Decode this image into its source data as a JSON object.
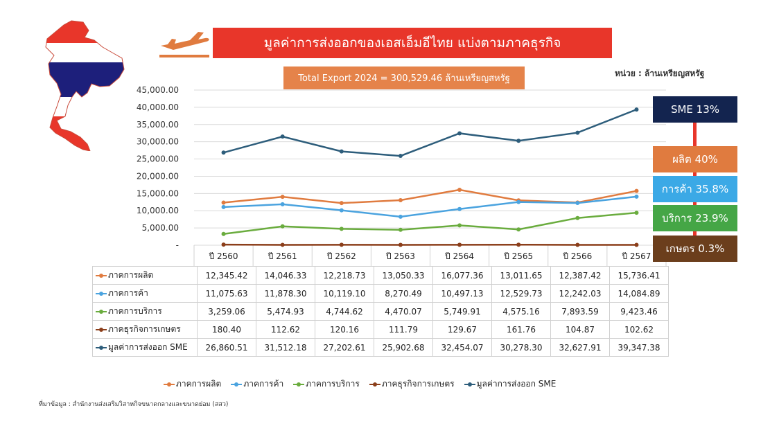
{
  "title": "มูลค่าการส่งออกของเอสเอ็มอีไทย แบ่งตามภาคธุรกิจ",
  "total_export": "Total Export 2024 = 300,529.46 ล้านเหรียญสหรัฐ",
  "unit": "หน่วย : ล้านเหรียญสหรัฐ",
  "source": "ที่มาข้อมูล : สำนักงานส่งเสริมวิสาหกิจขนาดกลางและขนาดย่อม (สสว)",
  "badges": {
    "sme": "SME 13%",
    "manufacturing": "ผลิต 40%",
    "trade": "การค้า 35.8%",
    "services": "บริการ 23.9%",
    "agriculture": "เกษตร 0.3%"
  },
  "colors": {
    "banner": "#e8362a",
    "total_box": "#e5834a",
    "grid": "#d9d9d9"
  },
  "icons": [
    "thailand-map-icon",
    "airplane-takeoff-icon"
  ],
  "chart_data": {
    "type": "line",
    "categories": [
      "ปี 2560",
      "ปี 2561",
      "ปี 2562",
      "ปี 2563",
      "ปี 2564",
      "ปี 2565",
      "ปี 2566",
      "ปี 2567"
    ],
    "yticks": [
      "45,000.00",
      "40,000.00",
      "35,000.00",
      "30,000.00",
      "25,000.00",
      "20,000.00",
      "15,000.00",
      "10,000.00",
      "5,000.00",
      "-"
    ],
    "ylim": [
      0,
      45000
    ],
    "grid": true,
    "legend_position": "bottom",
    "series": [
      {
        "name": "ภาคการผลิต",
        "color": "#e07b3f",
        "values": [
          12345.42,
          14046.33,
          12218.73,
          13050.33,
          16077.36,
          13011.65,
          12387.42,
          15736.41
        ],
        "labels": [
          "12,345.42",
          "14,046.33",
          "12,218.73",
          "13,050.33",
          "16,077.36",
          "13,011.65",
          "12,387.42",
          "15,736.41"
        ]
      },
      {
        "name": "ภาคการค้า",
        "color": "#4aa3df",
        "values": [
          11075.63,
          11878.3,
          10119.1,
          8270.49,
          10497.13,
          12529.73,
          12242.03,
          14084.89
        ],
        "labels": [
          "11,075.63",
          "11,878.30",
          "10,119.10",
          "8,270.49",
          "10,497.13",
          "12,529.73",
          "12,242.03",
          "14,084.89"
        ]
      },
      {
        "name": "ภาคการบริการ",
        "color": "#6aac3e",
        "values": [
          3259.06,
          5474.93,
          4744.62,
          4470.07,
          5749.91,
          4575.16,
          7893.59,
          9423.46
        ],
        "labels": [
          "3,259.06",
          "5,474.93",
          "4,744.62",
          "4,470.07",
          "5,749.91",
          "4,575.16",
          "7,893.59",
          "9,423.46"
        ]
      },
      {
        "name": "ภาคธุรกิจการเกษตร",
        "color": "#8b3e1a",
        "values": [
          180.4,
          112.62,
          120.16,
          111.79,
          129.67,
          161.76,
          104.87,
          102.62
        ],
        "labels": [
          "180.40",
          "112.62",
          "120.16",
          "111.79",
          "129.67",
          "161.76",
          "104.87",
          "102.62"
        ]
      },
      {
        "name": "มูลค่าการส่งออก SME",
        "color": "#2d5d7b",
        "values": [
          26860.51,
          31512.18,
          27202.61,
          25902.68,
          32454.07,
          30278.3,
          32627.91,
          39347.38
        ],
        "labels": [
          "26,860.51",
          "31,512.18",
          "27,202.61",
          "25,902.68",
          "32,454.07",
          "30,278.30",
          "32,627.91",
          "39,347.38"
        ]
      }
    ]
  }
}
